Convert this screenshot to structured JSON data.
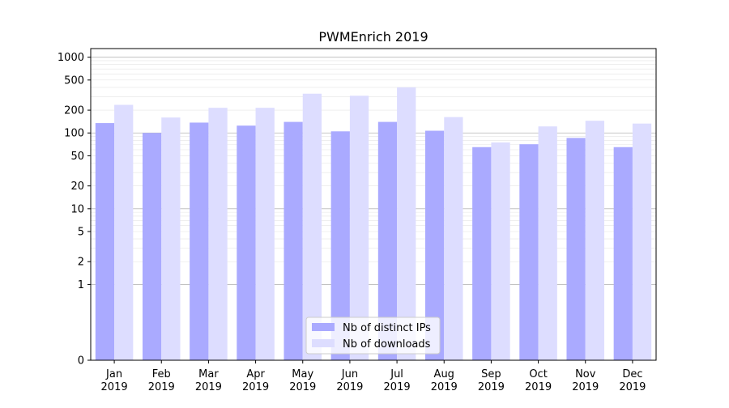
{
  "chart_data": {
    "type": "bar",
    "title": "PWMEnrich 2019",
    "xlabel": "",
    "ylabel": "",
    "yscale": "symlog",
    "ylim": [
      0,
      1300
    ],
    "grid": "horizontal, major and minor",
    "legend_position": "lower-center",
    "categories": [
      [
        "Jan",
        "2019"
      ],
      [
        "Feb",
        "2019"
      ],
      [
        "Mar",
        "2019"
      ],
      [
        "Apr",
        "2019"
      ],
      [
        "May",
        "2019"
      ],
      [
        "Jun",
        "2019"
      ],
      [
        "Jul",
        "2019"
      ],
      [
        "Aug",
        "2019"
      ],
      [
        "Sep",
        "2019"
      ],
      [
        "Oct",
        "2019"
      ],
      [
        "Nov",
        "2019"
      ],
      [
        "Dec",
        "2019"
      ]
    ],
    "yticks": [
      0,
      1,
      2,
      5,
      10,
      20,
      50,
      100,
      200,
      500,
      1000
    ],
    "series": [
      {
        "name": "Nb of distinct IPs",
        "color": "#aaaaff",
        "values": [
          135,
          100,
          137,
          125,
          140,
          105,
          140,
          107,
          65,
          71,
          86,
          65
        ]
      },
      {
        "name": "Nb of downloads",
        "color": "#ddddff",
        "values": [
          235,
          160,
          215,
          215,
          330,
          310,
          400,
          162,
          75,
          122,
          145,
          133
        ]
      }
    ]
  }
}
